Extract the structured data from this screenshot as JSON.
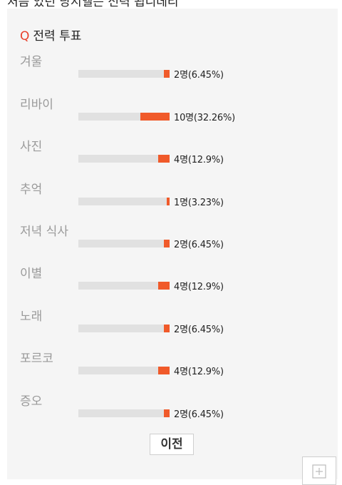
{
  "top_text": "처음 있던 당시엘는 전력 됩니데리",
  "question": {
    "marker": "Q",
    "title": "전력 투표"
  },
  "options": [
    {
      "label": "겨울",
      "result": "2명(6.45%)",
      "fraction": 0.0645
    },
    {
      "label": "리바이",
      "result": "10명(32.26%)",
      "fraction": 0.3226
    },
    {
      "label": "사진",
      "result": "4명(12.9%)",
      "fraction": 0.129
    },
    {
      "label": "추억",
      "result": "1명(3.23%)",
      "fraction": 0.0323
    },
    {
      "label": "저녁 식사",
      "result": "2명(6.45%)",
      "fraction": 0.0645
    },
    {
      "label": "이별",
      "result": "4명(12.9%)",
      "fraction": 0.129
    },
    {
      "label": "노래",
      "result": "2명(6.45%)",
      "fraction": 0.0645
    },
    {
      "label": "포르코",
      "result": "4명(12.9%)",
      "fraction": 0.129
    },
    {
      "label": "증오",
      "result": "2명(6.45%)",
      "fraction": 0.0645
    }
  ],
  "prev_button": "이전",
  "colors": {
    "accent": "#f05a2a",
    "question_mark": "#e8412c",
    "track": "#e1e1e1",
    "card_bg": "#f5f5f5"
  },
  "icons": {
    "corner": "plus-box-icon"
  }
}
